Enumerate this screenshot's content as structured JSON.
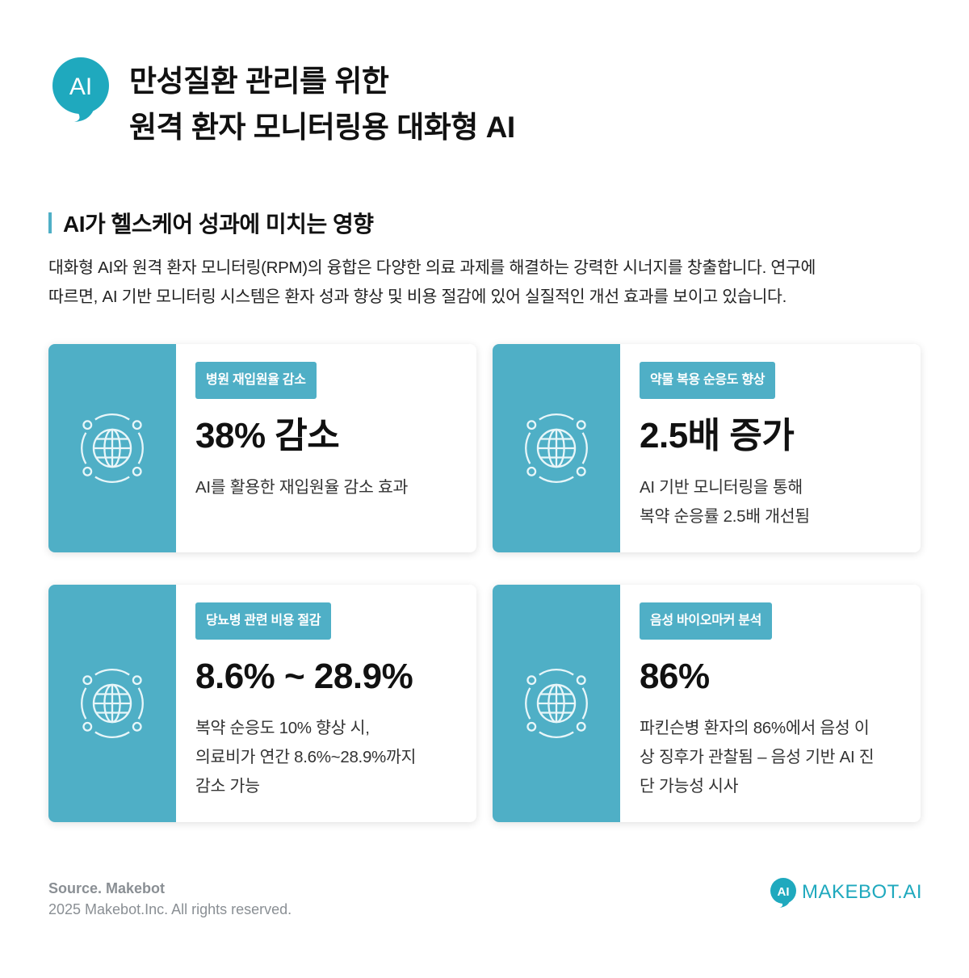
{
  "header": {
    "badge_text": "AI",
    "title_line1": "만성질환 관리를 위한",
    "title_line2": "원격 환자 모니터링용 대화형 AI"
  },
  "section": {
    "title": "AI가 헬스케어 성과에 미치는 영향",
    "intro_line1": "대화형 AI와 원격 환자 모니터링(RPM)의 융합은 다양한 의료 과제를 해결하는 강력한 시너지를 창출합니다. 연구에",
    "intro_line2": "따르면, AI 기반 모니터링 시스템은 환자 성과 향상 및 비용 절감에 있어 실질적인 개선 효과를 보이고 있습니다."
  },
  "cards": [
    {
      "tag": "병원 재입원율 감소",
      "value": "38% 감소",
      "desc": [
        "AI를 활용한 재입원율 감소 효과"
      ],
      "icon": "globe-icon"
    },
    {
      "tag": "약물 복용 순응도 향상",
      "value": "2.5배 증가",
      "desc": [
        "AI 기반 모니터링을 통해",
        "복약 순응률 2.5배 개선됨"
      ],
      "icon": "globe-icon"
    },
    {
      "tag": "당뇨병 관련 비용 절감",
      "value": "8.6% ~ 28.9%",
      "desc": [
        "복약 순응도 10% 향상 시,",
        "의료비가 연간 8.6%~28.9%까지",
        "감소 가능"
      ],
      "icon": "globe-icon"
    },
    {
      "tag": "음성 바이오마커 분석",
      "value": "86%",
      "desc": [
        "파킨슨병 환자의 86%에서 음성 이",
        "상 징후가 관찰됨 – 음성 기반 AI 진",
        "단 가능성 시사"
      ],
      "icon": "globe-icon"
    }
  ],
  "footer": {
    "source": "Source. Makebot",
    "copyright": "2025 Makebot.Inc. All rights reserved.",
    "logo_mark": "AI",
    "logo_text": "MAKEBOT.AI"
  },
  "colors": {
    "accent": "#4fafc6",
    "logo": "#1fa9be",
    "text": "#111111",
    "muted": "#8a8f94"
  }
}
